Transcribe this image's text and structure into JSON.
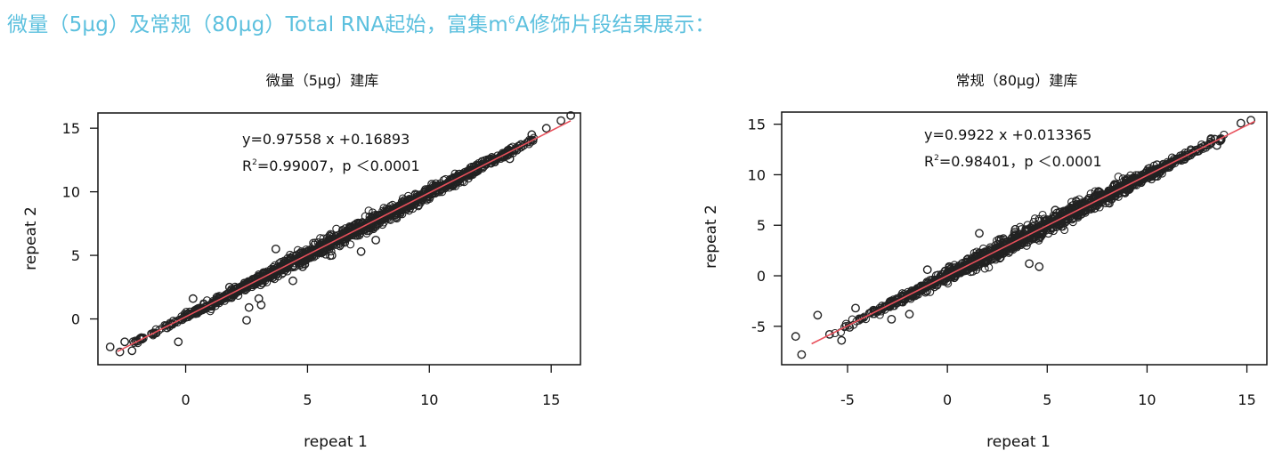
{
  "heading": {
    "before_sup": "微量（5µg）及常规（80µg）Total RNA起始，富集m",
    "sup": "6",
    "after_sup": "A修饰片段结果展示："
  },
  "chart_data": [
    {
      "type": "scatter",
      "title": "微量（5µg）建库",
      "xlabel": "repeat 1",
      "ylabel": "repeat 2",
      "xlim": [
        -3.6,
        16.2
      ],
      "ylim": [
        -3.6,
        16.2
      ],
      "x_ticks": [
        "0",
        "5",
        "10",
        "15"
      ],
      "y_ticks": [
        "0",
        "5",
        "10",
        "15"
      ],
      "x_tick_values": [
        0,
        5,
        10,
        15
      ],
      "y_tick_values": [
        0,
        5,
        10,
        15
      ],
      "fit": {
        "slope": 0.97558,
        "intercept": 0.16893,
        "x_range": [
          -2.8,
          15.8
        ],
        "color": "#e8505b"
      },
      "annotation": {
        "equation": "y=0.97558 x +0.16893",
        "r2_prefix": "R",
        "r2_sup": "2",
        "r2_rest": "=0.99007，p ＜0.0001"
      },
      "point_color": "#222222",
      "grid": false,
      "outliers": [
        [
          -3.1,
          -2.2
        ],
        [
          -2.7,
          -2.6
        ],
        [
          -2.5,
          -1.8
        ],
        [
          -2.2,
          -2.5
        ],
        [
          -1.8,
          -1.6
        ],
        [
          -0.3,
          -1.8
        ],
        [
          0.3,
          1.6
        ],
        [
          1.8,
          2.5
        ],
        [
          2.5,
          -0.1
        ],
        [
          2.6,
          0.9
        ],
        [
          3.1,
          1.1
        ],
        [
          3.0,
          1.6
        ],
        [
          3.7,
          5.5
        ],
        [
          4.4,
          3.0
        ],
        [
          4.8,
          4.1
        ],
        [
          6.0,
          5.0
        ],
        [
          7.2,
          5.3
        ],
        [
          7.8,
          6.2
        ],
        [
          8.4,
          8.6
        ],
        [
          9.0,
          8.9
        ],
        [
          10.1,
          10.6
        ],
        [
          11.2,
          11.1
        ],
        [
          12.5,
          12.6
        ],
        [
          13.0,
          12.8
        ],
        [
          13.3,
          12.6
        ],
        [
          14.2,
          14.5
        ],
        [
          14.8,
          15.0
        ],
        [
          15.4,
          15.6
        ],
        [
          15.8,
          16.0
        ]
      ]
    },
    {
      "type": "scatter",
      "title": "常规（80µg）建库",
      "xlabel": "repeat 1",
      "ylabel": "repeat 2",
      "xlim": [
        -8.3,
        16.0
      ],
      "ylim": [
        -8.8,
        16.2
      ],
      "x_ticks": [
        "-5",
        "0",
        "5",
        "10",
        "15"
      ],
      "y_ticks": [
        "-5",
        "0",
        "5",
        "10",
        "15"
      ],
      "x_tick_values": [
        -5,
        0,
        5,
        10,
        15
      ],
      "y_tick_values": [
        -5,
        0,
        5,
        10,
        15
      ],
      "fit": {
        "slope": 0.9922,
        "intercept": 0.013365,
        "x_range": [
          -6.8,
          15.4
        ],
        "color": "#e8505b"
      },
      "annotation": {
        "equation": "y=0.9922 x +0.013365",
        "r2_prefix": "R",
        "r2_sup": "2",
        "r2_rest": "=0.98401，p ＜0.0001"
      },
      "point_color": "#222222",
      "grid": false,
      "outliers": [
        [
          -7.3,
          -7.8
        ],
        [
          -7.6,
          -6.0
        ],
        [
          -6.5,
          -3.9
        ],
        [
          -5.9,
          -5.8
        ],
        [
          -5.3,
          -6.4
        ],
        [
          -4.6,
          -3.2
        ],
        [
          -4.9,
          -5.1
        ],
        [
          -3.8,
          -3.6
        ],
        [
          -2.8,
          -4.3
        ],
        [
          -1.9,
          -3.8
        ],
        [
          -1.0,
          0.6
        ],
        [
          0.1,
          0.9
        ],
        [
          1.0,
          1.6
        ],
        [
          1.6,
          4.2
        ],
        [
          2.4,
          2.1
        ],
        [
          2.6,
          3.6
        ],
        [
          3.4,
          4.6
        ],
        [
          4.1,
          1.2
        ],
        [
          4.6,
          0.9
        ],
        [
          5.4,
          6.5
        ],
        [
          6.0,
          6.5
        ],
        [
          6.9,
          7.3
        ],
        [
          7.6,
          8.3
        ],
        [
          9.0,
          9.6
        ],
        [
          10.5,
          11.0
        ],
        [
          11.6,
          11.6
        ],
        [
          12.6,
          12.4
        ],
        [
          13.2,
          13.5
        ],
        [
          13.5,
          12.9
        ],
        [
          14.7,
          15.1
        ],
        [
          15.2,
          15.4
        ]
      ]
    }
  ]
}
